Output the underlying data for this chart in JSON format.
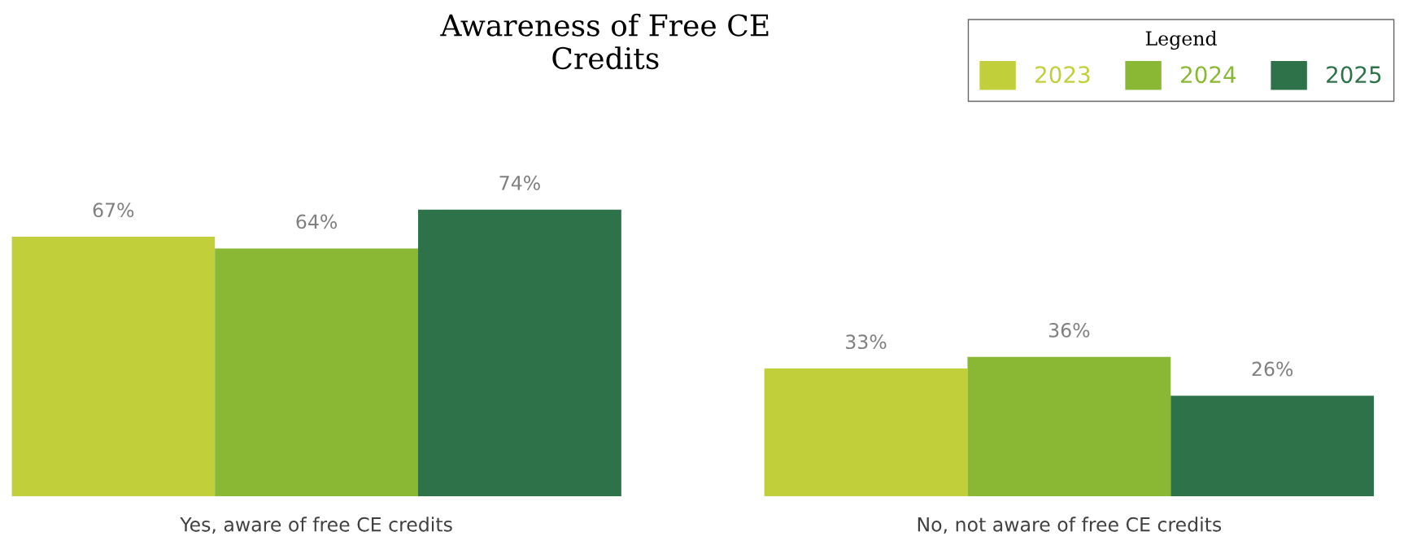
{
  "chart_data": {
    "type": "bar",
    "title": "Awareness of Free CE\nCredits",
    "categories": [
      "Yes, aware of free CE credits",
      "No, not aware of free CE credits"
    ],
    "series": [
      {
        "name": "2023",
        "color": "#c0cf3a",
        "values": [
          67,
          33
        ],
        "value_labels": [
          "67%",
          "33%"
        ]
      },
      {
        "name": "2024",
        "color": "#8ab734",
        "values": [
          64,
          36
        ],
        "value_labels": [
          "64%",
          "36%"
        ]
      },
      {
        "name": "2025",
        "color": "#2e7249",
        "values": [
          74,
          26
        ],
        "value_labels": [
          "74%",
          "26%"
        ]
      }
    ],
    "legend": "top right",
    "legend_title": "Legend",
    "grid": false
  }
}
